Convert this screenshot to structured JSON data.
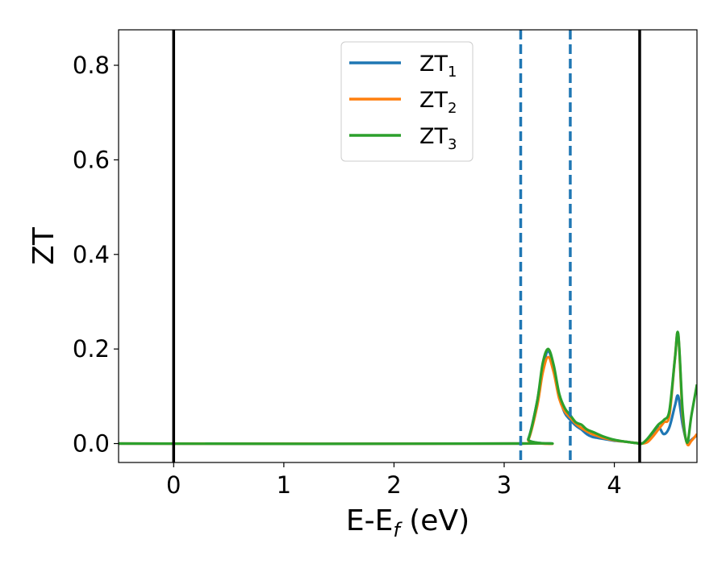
{
  "chart_data": {
    "type": "line",
    "xlabel": {
      "main": "E-E",
      "sub": "f",
      "tail": " (eV)"
    },
    "ylabel": "ZT",
    "xlim": [
      -0.5,
      4.75
    ],
    "ylim": [
      -0.04,
      0.875
    ],
    "xticks": [
      0,
      1,
      2,
      3,
      4
    ],
    "yticks": [
      0.0,
      0.2,
      0.4,
      0.6,
      0.8
    ],
    "xtick_labels": [
      "0",
      "1",
      "2",
      "3",
      "4"
    ],
    "ytick_labels": [
      "0.0",
      "0.2",
      "0.4",
      "0.6",
      "0.8"
    ],
    "grid": false,
    "legend": {
      "placement": "top-center"
    },
    "vlines": [
      {
        "x": 0.0,
        "style": "solid",
        "color": "#000000"
      },
      {
        "x": 4.23,
        "style": "solid",
        "color": "#000000"
      },
      {
        "x": 3.15,
        "style": "dashed",
        "color": "#1f77b4"
      },
      {
        "x": 3.6,
        "style": "dashed",
        "color": "#1f77b4"
      }
    ],
    "series": [
      {
        "name": "ZT",
        "name_sub": "1",
        "color": "#1f77b4",
        "x": [
          -0.5,
          3.15,
          3.22,
          3.3,
          3.35,
          3.4,
          3.45,
          3.5,
          3.55,
          3.6,
          3.65,
          3.7,
          3.75,
          3.8,
          3.85,
          3.9,
          4.0,
          4.1,
          4.2,
          4.25,
          4.3,
          4.35,
          4.4,
          4.45,
          4.5,
          4.55,
          4.58,
          4.62,
          4.66,
          4.7,
          4.75
        ],
        "y": [
          0.0,
          0.0,
          0.01,
          0.09,
          0.16,
          0.195,
          0.16,
          0.1,
          0.065,
          0.05,
          0.038,
          0.03,
          0.02,
          0.014,
          0.012,
          0.01,
          0.006,
          0.004,
          0.001,
          0.0,
          0.005,
          0.02,
          0.035,
          0.02,
          0.035,
          0.08,
          0.1,
          0.04,
          0.002,
          0.008,
          0.018
        ]
      },
      {
        "name": "ZT",
        "name_sub": "2",
        "color": "#ff7f0e",
        "x": [
          -0.5,
          3.15,
          3.22,
          3.3,
          3.35,
          3.4,
          3.45,
          3.5,
          3.55,
          3.6,
          3.65,
          3.7,
          3.75,
          3.8,
          3.85,
          3.9,
          4.0,
          4.1,
          4.2,
          4.25,
          4.3,
          4.35,
          4.4,
          4.45,
          4.5,
          4.55,
          4.58,
          4.62,
          4.66,
          4.7,
          4.75
        ],
        "y": [
          0.0,
          0.0,
          0.008,
          0.08,
          0.15,
          0.183,
          0.15,
          0.095,
          0.068,
          0.055,
          0.042,
          0.033,
          0.026,
          0.02,
          0.016,
          0.012,
          0.007,
          0.004,
          0.001,
          0.0,
          0.003,
          0.015,
          0.03,
          0.045,
          0.06,
          0.18,
          0.23,
          0.06,
          0.0,
          0.006,
          0.02
        ]
      },
      {
        "name": "ZT",
        "name_sub": "3",
        "color": "#2ca02c",
        "x": [
          -0.5,
          3.15,
          3.22,
          3.3,
          3.35,
          3.4,
          3.45,
          3.5,
          3.55,
          3.6,
          3.65,
          3.7,
          3.75,
          3.8,
          3.85,
          3.9,
          4.0,
          4.1,
          4.2,
          4.25,
          4.3,
          4.35,
          4.4,
          4.45,
          4.5,
          4.55,
          4.58,
          4.62,
          4.66,
          4.7,
          4.75
        ],
        "y": [
          0.0,
          0.0,
          0.01,
          0.09,
          0.17,
          0.2,
          0.165,
          0.105,
          0.075,
          0.06,
          0.045,
          0.04,
          0.03,
          0.025,
          0.02,
          0.015,
          0.008,
          0.004,
          0.001,
          0.0,
          0.01,
          0.025,
          0.04,
          0.05,
          0.07,
          0.18,
          0.232,
          0.07,
          0.002,
          0.06,
          0.125
        ]
      }
    ]
  }
}
